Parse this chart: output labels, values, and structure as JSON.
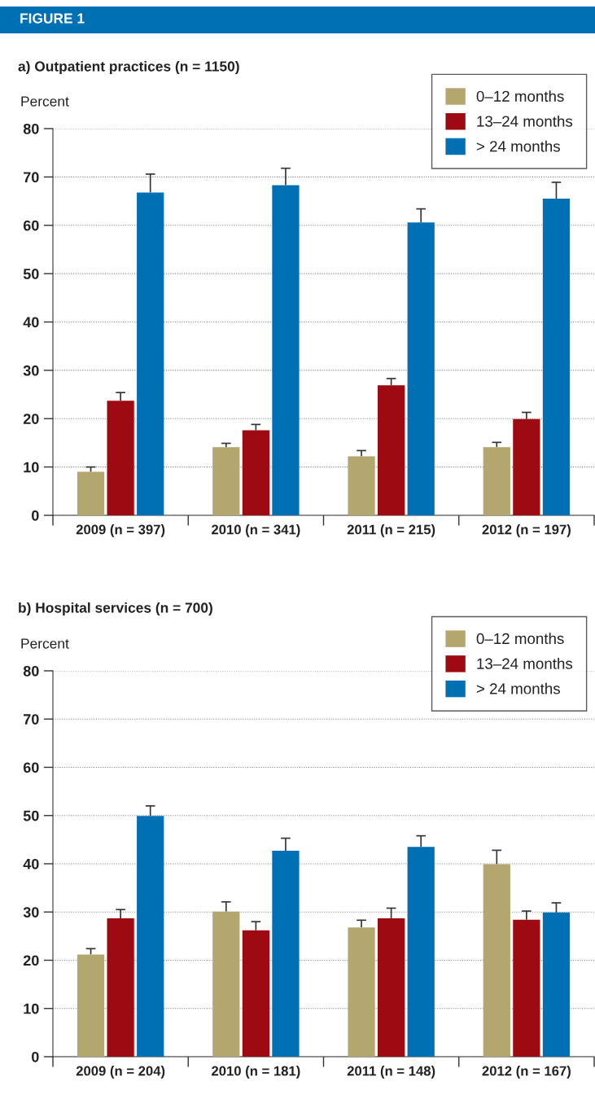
{
  "chart_data": [
    {
      "type": "bar",
      "title": "a) Outpatient practices (n = 1150)",
      "ylabel": "Percent",
      "annotations": [
        "FIGURE 1"
      ],
      "categories": [
        "2009 (n = 397)",
        "2010 (n = 341)",
        "2011 (n = 215)",
        "2012 (n = 197)"
      ],
      "series": [
        {
          "name": "0–12 months",
          "color": "#b3a66e",
          "values": [
            9.0,
            14.1,
            12.2,
            14.1
          ],
          "errors": [
            [
              9.0,
              10.0
            ],
            [
              14.1,
              14.9
            ],
            [
              12.2,
              13.4
            ],
            [
              14.1,
              15.1
            ]
          ]
        },
        {
          "name": "13–24 months",
          "color": "#9e0a12",
          "values": [
            23.7,
            17.6,
            26.9,
            19.9
          ],
          "errors": [
            [
              23.7,
              25.4
            ],
            [
              17.6,
              18.8
            ],
            [
              26.9,
              28.3
            ],
            [
              19.9,
              21.3
            ]
          ]
        },
        {
          "name": "> 24 months",
          "color": "#0070b4",
          "values": [
            66.8,
            68.3,
            60.6,
            65.5
          ],
          "errors": [
            [
              66.8,
              70.6
            ],
            [
              68.3,
              71.8
            ],
            [
              60.6,
              63.4
            ],
            [
              65.5,
              68.9
            ]
          ]
        }
      ],
      "ylim": [
        0,
        80
      ],
      "yticks": [
        0,
        10,
        20,
        30,
        40,
        50,
        60,
        70,
        80
      ],
      "grid": "y",
      "legend": "top right"
    },
    {
      "type": "bar",
      "title": "b) Hospital services (n = 700)",
      "ylabel": "Percent",
      "categories": [
        "2009 (n = 204)",
        "2010 (n = 181)",
        "2011 (n = 148)",
        "2012 (n = 167)"
      ],
      "series": [
        {
          "name": "0–12 months",
          "color": "#b3a66e",
          "values": [
            21.2,
            30.1,
            26.8,
            39.9
          ],
          "errors": [
            [
              21.2,
              22.4
            ],
            [
              30.1,
              32.1
            ],
            [
              26.8,
              28.3
            ],
            [
              39.9,
              42.8
            ]
          ]
        },
        {
          "name": "13–24 months",
          "color": "#9e0a12",
          "values": [
            28.7,
            26.2,
            28.7,
            28.4
          ],
          "errors": [
            [
              28.7,
              30.5
            ],
            [
              26.2,
              28.0
            ],
            [
              28.7,
              30.8
            ],
            [
              28.4,
              30.2
            ]
          ]
        },
        {
          "name": "> 24 months",
          "color": "#0070b4",
          "values": [
            49.9,
            42.7,
            43.5,
            29.9
          ],
          "errors": [
            [
              49.9,
              52.0
            ],
            [
              42.7,
              45.3
            ],
            [
              43.5,
              45.8
            ],
            [
              29.9,
              31.9
            ]
          ]
        }
      ],
      "ylim": [
        0,
        80
      ],
      "yticks": [
        0,
        10,
        20,
        30,
        40,
        50,
        60,
        70,
        80
      ],
      "grid": "y",
      "legend": "top right"
    }
  ]
}
